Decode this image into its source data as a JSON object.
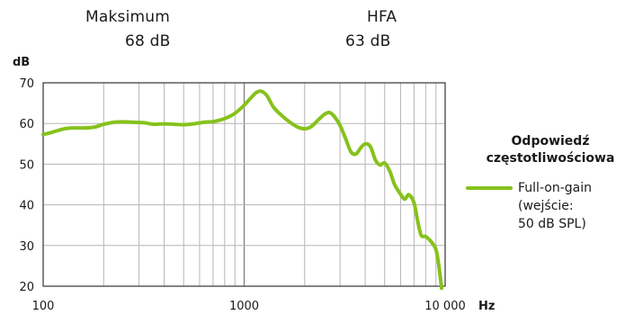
{
  "header": {
    "max_label": "Maksimum",
    "max_value": "68  dB",
    "hfa_label": "HFA",
    "hfa_value": "63  dB"
  },
  "legend": {
    "title_line1": "Odpowiedź",
    "title_line2": "częstotliwościowa",
    "series_line1": "Full-on-gain (wejście:",
    "series_line2": "50 dB SPL)"
  },
  "colors": {
    "series": "#86c21c",
    "grid": "#b5b5b5",
    "decade_grid": "#7a7a7a",
    "axis": "#333333"
  },
  "chart_data": {
    "type": "line",
    "title": "",
    "xlabel": "Hz",
    "ylabel": "dB",
    "x_scale": "log",
    "xlim": [
      100,
      10000
    ],
    "ylim": [
      20,
      70
    ],
    "x_ticks": [
      100,
      1000,
      10000
    ],
    "x_tick_labels": [
      "100",
      "1000",
      "10 000"
    ],
    "y_ticks": [
      20,
      30,
      40,
      50,
      60,
      70
    ],
    "y_tick_labels": [
      "20",
      "30",
      "40",
      "50",
      "60",
      "70"
    ],
    "grid": true,
    "legend_position": "right",
    "series": [
      {
        "name": "Full-on-gain (wejście: 50 dB SPL)",
        "x": [
          100,
          110,
          125,
          140,
          160,
          180,
          200,
          225,
          250,
          280,
          315,
          355,
          400,
          450,
          500,
          560,
          630,
          710,
          800,
          900,
          1000,
          1080,
          1150,
          1220,
          1300,
          1400,
          1550,
          1700,
          1850,
          2000,
          2150,
          2350,
          2500,
          2650,
          2800,
          3000,
          3200,
          3400,
          3600,
          3800,
          4000,
          4250,
          4500,
          4750,
          5000,
          5300,
          5600,
          6000,
          6300,
          6600,
          7000,
          7300,
          7600,
          8000,
          8500,
          9000,
          9300,
          9600
        ],
        "y": [
          57.3,
          57.8,
          58.6,
          58.9,
          58.9,
          59.1,
          59.8,
          60.3,
          60.4,
          60.3,
          60.2,
          59.8,
          59.9,
          59.8,
          59.7,
          59.9,
          60.3,
          60.5,
          61.2,
          62.5,
          64.5,
          66.3,
          67.6,
          67.9,
          66.8,
          64.0,
          61.8,
          60.2,
          59.1,
          58.7,
          59.2,
          61.0,
          62.2,
          62.7,
          61.8,
          59.5,
          56.2,
          53.0,
          52.5,
          54.0,
          55.0,
          54.3,
          51.0,
          49.8,
          50.3,
          48.3,
          45.0,
          42.6,
          41.4,
          42.5,
          40.5,
          36.0,
          32.5,
          32.2,
          31.0,
          29.0,
          25.0,
          19.5
        ]
      }
    ]
  }
}
